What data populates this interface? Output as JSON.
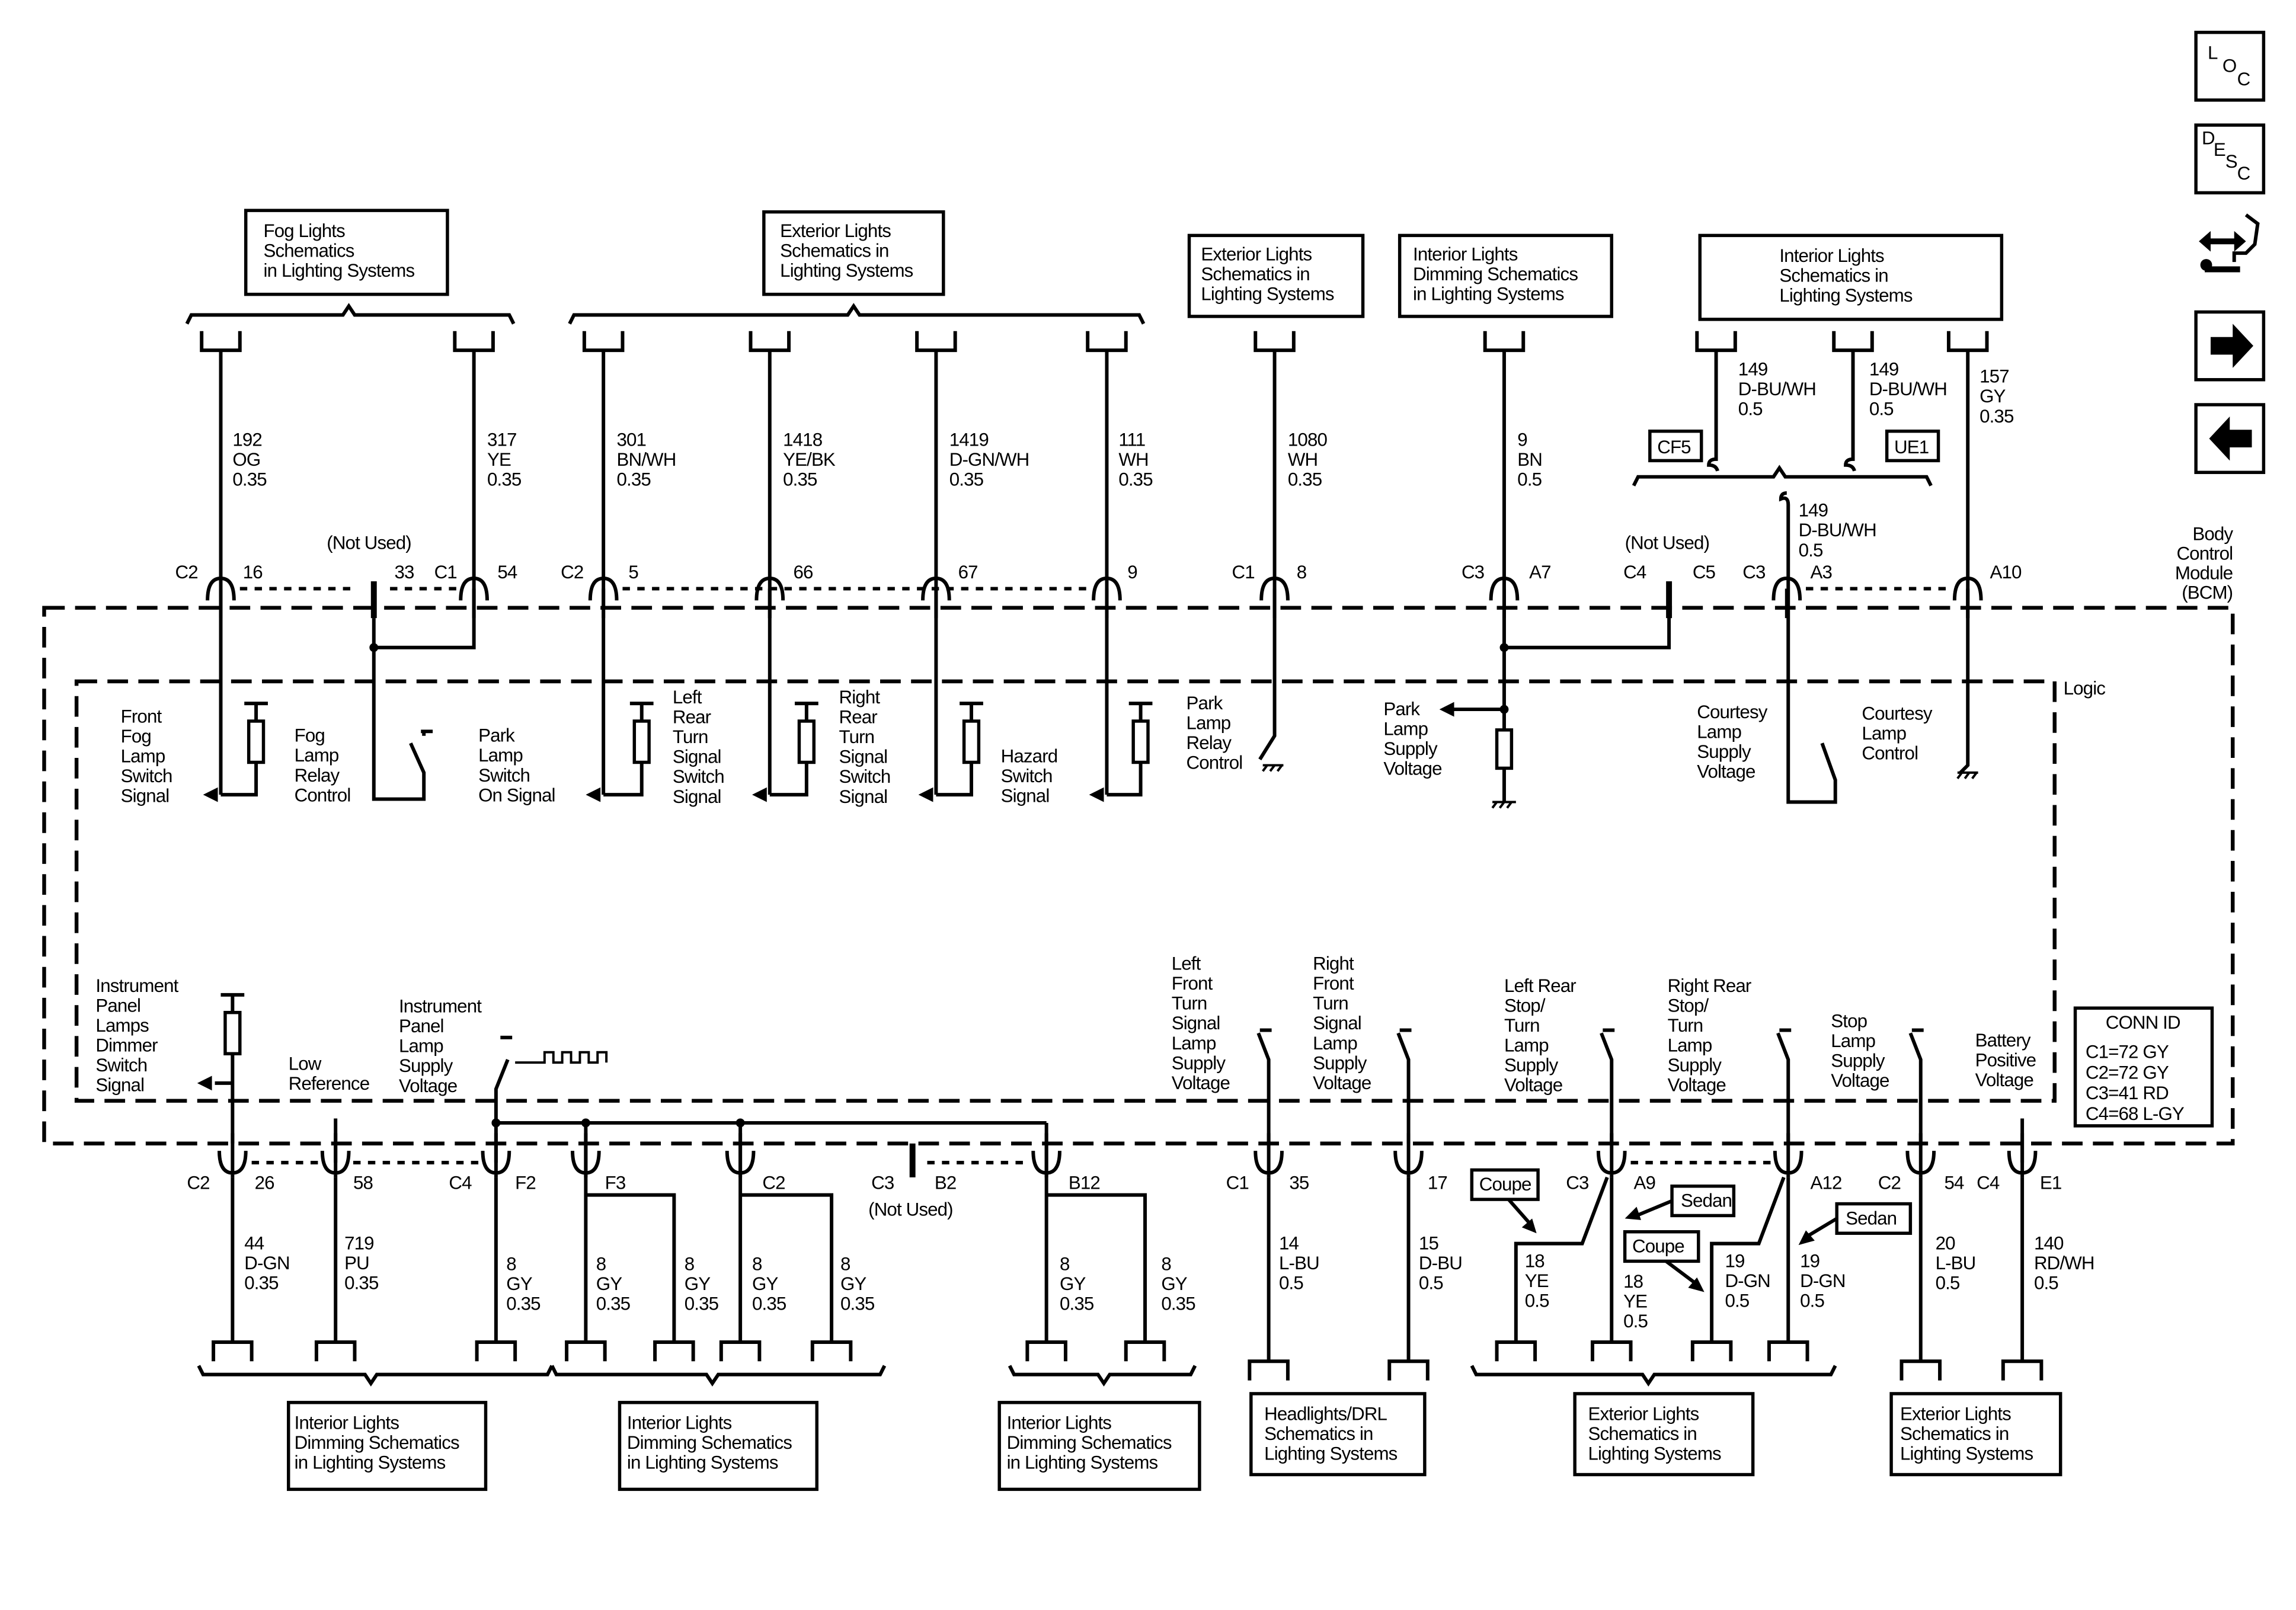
{
  "nav": {
    "loc_letters": [
      "L",
      "O",
      "C"
    ],
    "desc_letters": [
      "D",
      "E",
      "S",
      "C"
    ],
    "icons": [
      "loc-icon",
      "desc-icon",
      "swap-wrench-icon",
      "next-arrow-icon",
      "previous-arrow-icon"
    ]
  },
  "module": {
    "name": [
      "Body",
      "Control",
      "Module",
      "(BCM)"
    ],
    "logic": "Logic"
  },
  "top_refs": [
    {
      "lines": [
        "Fog Lights",
        "Schematics",
        "in Lighting Systems"
      ]
    },
    {
      "lines": [
        "Exterior Lights",
        "Schematics in",
        "Lighting Systems"
      ]
    },
    {
      "lines": [
        "Exterior Lights",
        "Schematics in",
        "Lighting Systems"
      ]
    },
    {
      "lines": [
        "Interior Lights",
        "Dimming Schematics",
        "in Lighting Systems"
      ]
    },
    {
      "lines": [
        "Interior Lights",
        "Schematics in",
        "Lighting Systems"
      ]
    }
  ],
  "top_wires": [
    [
      "192",
      "OG",
      "0.35"
    ],
    [
      "317",
      "YE",
      "0.35"
    ],
    [
      "301",
      "BN/WH",
      "0.35"
    ],
    [
      "1418",
      "YE/BK",
      "0.35"
    ],
    [
      "1419",
      "D-GN/WH",
      "0.35"
    ],
    [
      "111",
      "WH",
      "0.35"
    ],
    [
      "1080",
      "WH",
      "0.35"
    ],
    [
      "9",
      "BN",
      "0.5"
    ],
    [
      "149",
      "D-BU/WH",
      "0.5"
    ],
    [
      "149",
      "D-BU/WH",
      "0.5"
    ],
    [
      "157",
      "GY",
      "0.35"
    ],
    [
      "149",
      "D-BU/WH",
      "0.5"
    ]
  ],
  "splice_tags": [
    "CF5",
    "UE1"
  ],
  "top_pins": [
    "C2",
    "16",
    "(Not Used)",
    "33",
    "C1",
    "54",
    "C2",
    "5",
    "66",
    "67",
    "9",
    "C1",
    "8",
    "C3",
    "A7",
    "(Not Used)",
    "C4",
    "C5",
    "C3",
    "A3",
    "A10"
  ],
  "internal_labels": [
    [
      "Front",
      "Fog",
      "Lamp",
      "Switch",
      "Signal"
    ],
    [
      "Fog",
      "Lamp",
      "Relay",
      "Control"
    ],
    [
      "Park",
      "Lamp",
      "Switch",
      "On Signal"
    ],
    [
      "Left",
      "Rear",
      "Turn",
      "Signal",
      "Switch",
      "Signal"
    ],
    [
      "Right",
      "Rear",
      "Turn",
      "Signal",
      "Switch",
      "Signal"
    ],
    [
      "Hazard",
      "Switch",
      "Signal"
    ],
    [
      "Park",
      "Lamp",
      "Relay",
      "Control"
    ],
    [
      "Park",
      "Lamp",
      "Supply",
      "Voltage"
    ],
    [
      "Courtesy",
      "Lamp",
      "Supply",
      "Voltage"
    ],
    [
      "Courtesy",
      "Lamp",
      "Control"
    ],
    [
      "Instrument",
      "Panel",
      "Lamps",
      "Dimmer",
      "Switch",
      "Signal"
    ],
    [
      "Low",
      "Reference"
    ],
    [
      "Instrument",
      "Panel",
      "Lamp",
      "Supply",
      "Voltage"
    ],
    [
      "Left",
      "Front",
      "Turn",
      "Signal",
      "Lamp",
      "Supply",
      "Voltage"
    ],
    [
      "Right",
      "Front",
      "Turn",
      "Signal",
      "Lamp",
      "Supply",
      "Voltage"
    ],
    [
      "Left Rear",
      "Stop/",
      "Turn",
      "Lamp",
      "Supply",
      "Voltage"
    ],
    [
      "Right Rear",
      "Stop/",
      "Turn",
      "Lamp",
      "Supply",
      "Voltage"
    ],
    [
      "Stop",
      "Lamp",
      "Supply",
      "Voltage"
    ],
    [
      "Battery",
      "Positive",
      "Voltage"
    ]
  ],
  "conn_id": {
    "title": "CONN ID",
    "lines": [
      "C1=72 GY",
      "C2=72 GY",
      "C3=41 RD",
      "C4=68 L-GY"
    ]
  },
  "bottom_pins": [
    "C2",
    "26",
    "58",
    "C4",
    "F2",
    "F3",
    "C2",
    "C3",
    "B2",
    "(Not Used)",
    "B12",
    "C1",
    "35",
    "17",
    "C3",
    "A9",
    "A12",
    "C2",
    "54",
    "C4",
    "E1"
  ],
  "bottom_wires": [
    [
      "44",
      "D-GN",
      "0.35"
    ],
    [
      "719",
      "PU",
      "0.35"
    ],
    [
      "8",
      "GY",
      "0.35"
    ],
    [
      "8",
      "GY",
      "0.35"
    ],
    [
      "8",
      "GY",
      "0.35"
    ],
    [
      "8",
      "GY",
      "0.35"
    ],
    [
      "8",
      "GY",
      "0.35"
    ],
    [
      "8",
      "GY",
      "0.35"
    ],
    [
      "8",
      "GY",
      "0.35"
    ],
    [
      "14",
      "L-BU",
      "0.5"
    ],
    [
      "15",
      "D-BU",
      "0.5"
    ],
    [
      "18",
      "YE",
      "0.5"
    ],
    [
      "18",
      "YE",
      "0.5"
    ],
    [
      "19",
      "D-GN",
      "0.5"
    ],
    [
      "19",
      "D-GN",
      "0.5"
    ],
    [
      "20",
      "L-BU",
      "0.5"
    ],
    [
      "140",
      "RD/WH",
      "0.5"
    ]
  ],
  "option_tags": [
    "Coupe",
    "Sedan",
    "Coupe",
    "Sedan"
  ],
  "bottom_refs": [
    {
      "lines": [
        "Interior Lights",
        "Dimming Schematics",
        "in Lighting Systems"
      ]
    },
    {
      "lines": [
        "Interior Lights",
        "Dimming Schematics",
        "in Lighting Systems"
      ]
    },
    {
      "lines": [
        "Interior Lights",
        "Dimming Schematics",
        "in Lighting Systems"
      ]
    },
    {
      "lines": [
        "Headlights/DRL",
        "Schematics in",
        "Lighting Systems"
      ]
    },
    {
      "lines": [
        "Exterior Lights",
        "Schematics in",
        "Lighting Systems"
      ]
    },
    {
      "lines": [
        "Exterior Lights",
        "Schematics in",
        "Lighting Systems"
      ]
    }
  ]
}
